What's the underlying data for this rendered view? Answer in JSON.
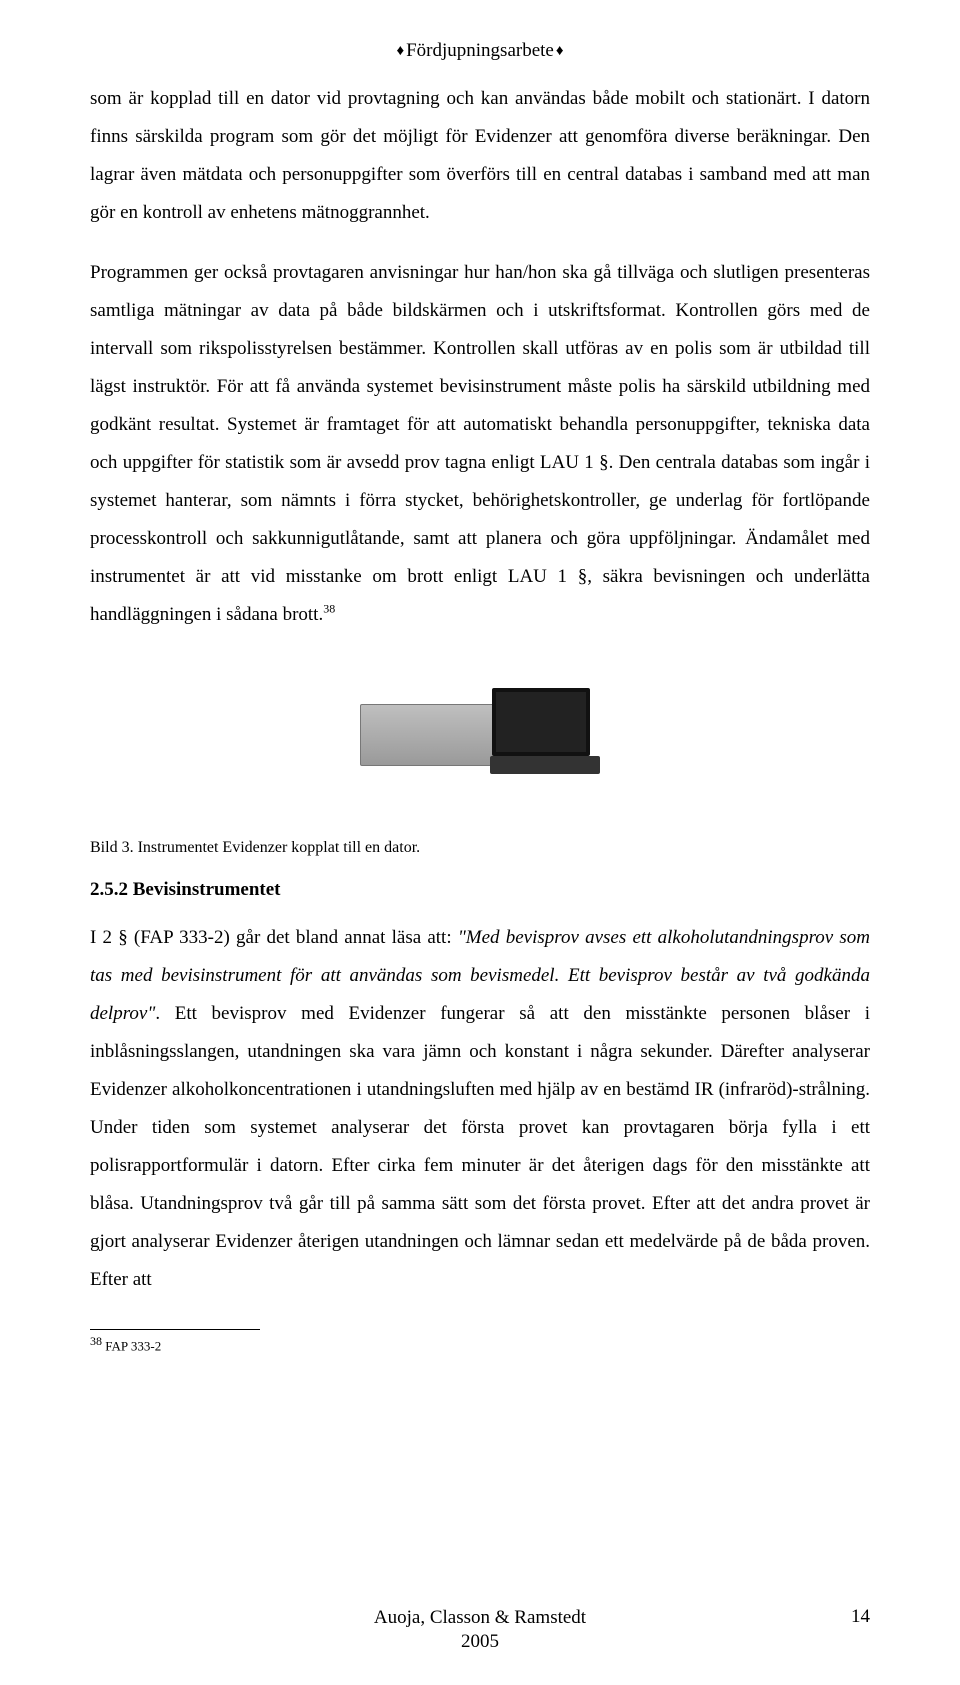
{
  "header": {
    "title": "Fördjupningsarbete"
  },
  "paragraphs": {
    "p1": "som är kopplad till en dator vid provtagning och kan användas både mobilt och stationärt. I datorn finns särskilda program som gör det möjligt för Evidenzer att genomföra diverse beräkningar. Den lagrar även mätdata och personuppgifter som överförs till en central databas i samband med att man gör en kontroll av enhetens mätnoggrannhet.",
    "p2_a": "Programmen ger också provtagaren anvisningar hur han/hon ska gå tillväga och slutligen presenteras samtliga mätningar av data på både bildskärmen och i utskriftsformat. Kontrollen görs med de intervall som rikspolisstyrelsen bestämmer. Kontrollen skall utföras av en polis som är utbildad till lägst instruktör. För att få använda systemet bevisinstrument måste polis ha särskild utbildning med godkänt resultat. Systemet är framtaget för att automatiskt behandla personuppgifter, tekniska data och uppgifter för statistik som är avsedd prov tagna enligt LAU 1 §. Den centrala databas som ingår i systemet hanterar, som nämnts i förra stycket, behörighetskontroller, ge underlag för fortlöpande processkontroll och sakkunnigutlåtande, samt att planera och göra uppföljningar. Ändamålet med instrumentet är att vid misstanke om brott enligt LAU 1 §, säkra bevisningen och underlätta handläggningen i sådana brott.",
    "p2_sup": "38",
    "p3_a": "I 2 § (FAP 333-2) går det bland annat läsa att: ",
    "p3_italic": "\"Med bevisprov avses ett alkoholutandningsprov som tas med bevisinstrument för att användas som bevismedel. Ett bevisprov består av två godkända delprov\"",
    "p3_b": ". Ett bevisprov med Evidenzer fungerar så att den misstänkte personen blåser i inblåsningsslangen, utandningen ska vara jämn och konstant i några sekunder. Därefter analyserar Evidenzer alkoholkoncentrationen i utandningsluften med hjälp av en bestämd IR (infraröd)-strålning. Under tiden som systemet analyserar det första provet kan provtagaren börja fylla i ett polisrapportformulär i datorn. Efter cirka fem minuter är det återigen dags för den misstänkte att blåsa. Utandningsprov två går till på samma sätt som det första provet. Efter att det andra provet är gjort analyserar Evidenzer återigen utandningen och lämnar sedan ett medelvärde på de båda proven. Efter att"
  },
  "figure": {
    "caption": "Bild 3. Instrumentet Evidenzer kopplat till en dator."
  },
  "section": {
    "heading": "2.5.2 Bevisinstrumentet"
  },
  "footnote": {
    "ref": "38",
    "text": " FAP 333-2"
  },
  "footer": {
    "authors": "Auoja, Classon & Ramstedt",
    "year": "2005",
    "page": "14"
  }
}
